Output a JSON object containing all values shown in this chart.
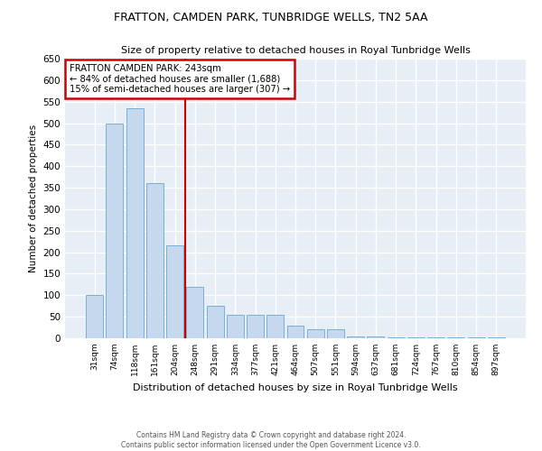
{
  "title1": "FRATTON, CAMDEN PARK, TUNBRIDGE WELLS, TN2 5AA",
  "title2": "Size of property relative to detached houses in Royal Tunbridge Wells",
  "xlabel": "Distribution of detached houses by size in Royal Tunbridge Wells",
  "ylabel": "Number of detached properties",
  "footnote1": "Contains HM Land Registry data © Crown copyright and database right 2024.",
  "footnote2": "Contains public sector information licensed under the Open Government Licence v3.0.",
  "categories": [
    "31sqm",
    "74sqm",
    "118sqm",
    "161sqm",
    "204sqm",
    "248sqm",
    "291sqm",
    "334sqm",
    "377sqm",
    "421sqm",
    "464sqm",
    "507sqm",
    "551sqm",
    "594sqm",
    "637sqm",
    "681sqm",
    "724sqm",
    "767sqm",
    "810sqm",
    "854sqm",
    "897sqm"
  ],
  "values": [
    100,
    500,
    535,
    360,
    215,
    120,
    75,
    55,
    55,
    55,
    30,
    20,
    20,
    5,
    5,
    3,
    3,
    3,
    3,
    3,
    3
  ],
  "bar_color": "#C5D8EE",
  "bar_edge_color": "#7AAFD4",
  "background_color": "#E8EEF6",
  "grid_color": "#FFFFFF",
  "red_line_x": 4.5,
  "annotation_text": "FRATTON CAMDEN PARK: 243sqm\n← 84% of detached houses are smaller (1,688)\n15% of semi-detached houses are larger (307) →",
  "annotation_box_color": "#FFFFFF",
  "annotation_border_color": "#CC0000",
  "ylim": [
    0,
    650
  ],
  "yticks": [
    0,
    50,
    100,
    150,
    200,
    250,
    300,
    350,
    400,
    450,
    500,
    550,
    600,
    650
  ]
}
